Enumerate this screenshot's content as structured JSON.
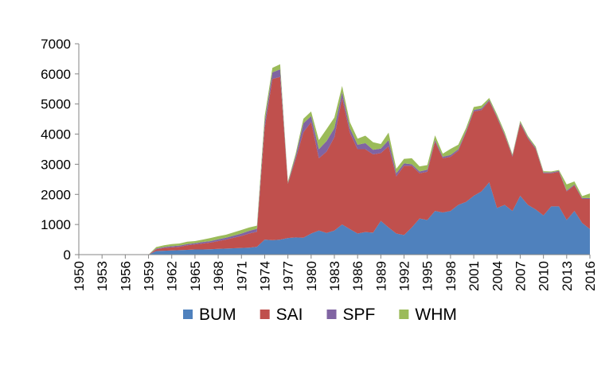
{
  "chart_data": {
    "type": "area",
    "stacked": true,
    "title": "",
    "xlabel": "",
    "ylabel": "",
    "ylim": [
      0,
      7000
    ],
    "yticks": [
      0,
      1000,
      2000,
      3000,
      4000,
      5000,
      6000,
      7000
    ],
    "x_tick_labels": [
      "1950",
      "1953",
      "1956",
      "1959",
      "1962",
      "1965",
      "1968",
      "1971",
      "1974",
      "1977",
      "1980",
      "1983",
      "1986",
      "1989",
      "1992",
      "1995",
      "1998",
      "2001",
      "2004",
      "2007",
      "2010",
      "2013",
      "2016"
    ],
    "x": [
      1950,
      1951,
      1952,
      1953,
      1954,
      1955,
      1956,
      1957,
      1958,
      1959,
      1960,
      1961,
      1962,
      1963,
      1964,
      1965,
      1966,
      1967,
      1968,
      1969,
      1970,
      1971,
      1972,
      1973,
      1974,
      1975,
      1976,
      1977,
      1978,
      1979,
      1980,
      1981,
      1982,
      1983,
      1984,
      1985,
      1986,
      1987,
      1988,
      1989,
      1990,
      1991,
      1992,
      1993,
      1994,
      1995,
      1996,
      1997,
      1998,
      1999,
      2000,
      2001,
      2002,
      2003,
      2004,
      2005,
      2006,
      2007,
      2008,
      2009,
      2010,
      2011,
      2012,
      2013,
      2014,
      2015,
      2016
    ],
    "grid": false,
    "legend_position": "bottom",
    "series": [
      {
        "name": "BUM",
        "color": "#4f81bd",
        "values": [
          0,
          0,
          0,
          0,
          0,
          0,
          0,
          0,
          0,
          0,
          120,
          130,
          140,
          150,
          160,
          170,
          170,
          180,
          190,
          200,
          210,
          220,
          230,
          260,
          500,
          480,
          500,
          550,
          570,
          560,
          700,
          800,
          720,
          800,
          1000,
          850,
          700,
          750,
          730,
          1120,
          900,
          700,
          650,
          900,
          1200,
          1150,
          1450,
          1400,
          1450,
          1650,
          1750,
          1950,
          2100,
          2400,
          1550,
          1650,
          1450,
          1950,
          1650,
          1500,
          1300,
          1600,
          1600,
          1150,
          1450,
          1050,
          850
        ]
      },
      {
        "name": "SAI",
        "color": "#c0504d",
        "values": [
          0,
          0,
          0,
          0,
          0,
          0,
          0,
          0,
          0,
          0,
          60,
          90,
          100,
          110,
          150,
          170,
          200,
          220,
          260,
          300,
          350,
          400,
          470,
          500,
          3700,
          5350,
          5400,
          1800,
          2600,
          3500,
          3700,
          2400,
          2700,
          3100,
          4200,
          3200,
          2800,
          2750,
          2600,
          2250,
          2700,
          1900,
          2300,
          2050,
          1500,
          1600,
          2300,
          1800,
          1800,
          1800,
          2300,
          2800,
          2700,
          2700,
          3000,
          2300,
          1800,
          2400,
          2200,
          2000,
          1400,
          1100,
          1150,
          950,
          850,
          800,
          1000
        ]
      },
      {
        "name": "SPF",
        "color": "#8064a2",
        "values": [
          0,
          0,
          0,
          0,
          0,
          0,
          0,
          0,
          0,
          0,
          20,
          30,
          40,
          40,
          40,
          40,
          50,
          50,
          60,
          60,
          70,
          80,
          90,
          100,
          200,
          220,
          250,
          30,
          100,
          300,
          200,
          300,
          350,
          300,
          200,
          150,
          150,
          200,
          150,
          150,
          200,
          100,
          80,
          50,
          60,
          70,
          60,
          50,
          60,
          50,
          50,
          50,
          50,
          40,
          40,
          40,
          40,
          40,
          40,
          40,
          30,
          30,
          30,
          30,
          30,
          30,
          30
        ]
      },
      {
        "name": "WHM",
        "color": "#9bbb59",
        "values": [
          0,
          0,
          0,
          0,
          0,
          0,
          0,
          0,
          0,
          0,
          50,
          60,
          70,
          70,
          80,
          70,
          80,
          100,
          100,
          100,
          110,
          120,
          110,
          100,
          200,
          150,
          170,
          50,
          80,
          150,
          150,
          300,
          400,
          350,
          200,
          200,
          200,
          250,
          250,
          150,
          250,
          150,
          150,
          200,
          170,
          150,
          150,
          100,
          200,
          150,
          100,
          100,
          100,
          60,
          70,
          70,
          40,
          50,
          50,
          50,
          40,
          30,
          30,
          200,
          100,
          60,
          150
        ]
      }
    ]
  }
}
